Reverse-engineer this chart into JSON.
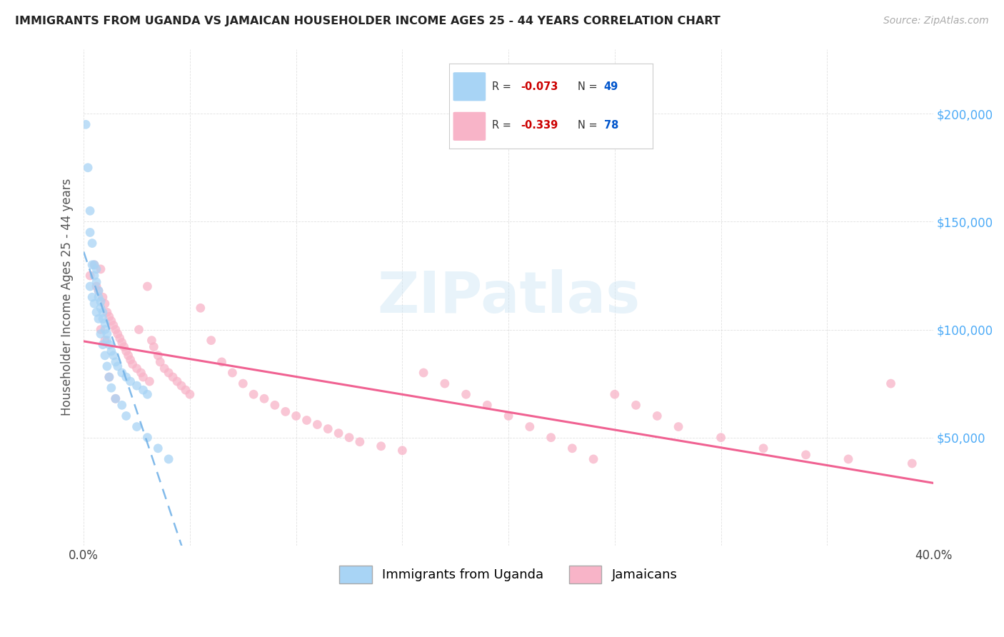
{
  "title": "IMMIGRANTS FROM UGANDA VS JAMAICAN HOUSEHOLDER INCOME AGES 25 - 44 YEARS CORRELATION CHART",
  "source": "Source: ZipAtlas.com",
  "ylabel": "Householder Income Ages 25 - 44 years",
  "xlim": [
    0.0,
    0.4
  ],
  "ylim": [
    0,
    230000
  ],
  "color_uganda": "#a8d4f5",
  "color_jamaican": "#f8b4c8",
  "color_trend_uganda": "#74b3e8",
  "color_trend_jamaican": "#f06292",
  "background_color": "#ffffff",
  "legend_r1": "R = -0.073",
  "legend_n1": "N = 49",
  "legend_r2": "R = -0.339",
  "legend_n2": "N = 78",
  "bottom_legend": [
    "Immigrants from Uganda",
    "Jamaicans"
  ],
  "uganda_x": [
    0.001,
    0.002,
    0.003,
    0.003,
    0.004,
    0.004,
    0.005,
    0.005,
    0.006,
    0.006,
    0.007,
    0.007,
    0.008,
    0.008,
    0.009,
    0.009,
    0.01,
    0.01,
    0.011,
    0.011,
    0.012,
    0.013,
    0.014,
    0.015,
    0.016,
    0.018,
    0.02,
    0.022,
    0.025,
    0.028,
    0.03,
    0.003,
    0.004,
    0.005,
    0.006,
    0.007,
    0.008,
    0.009,
    0.01,
    0.011,
    0.012,
    0.013,
    0.015,
    0.018,
    0.02,
    0.025,
    0.03,
    0.035,
    0.04
  ],
  "uganda_y": [
    195000,
    175000,
    155000,
    145000,
    140000,
    130000,
    130000,
    125000,
    128000,
    122000,
    118000,
    115000,
    113000,
    110000,
    108000,
    105000,
    103000,
    100000,
    98000,
    95000,
    93000,
    90000,
    88000,
    85000,
    83000,
    80000,
    78000,
    76000,
    74000,
    72000,
    70000,
    120000,
    115000,
    112000,
    108000,
    105000,
    98000,
    93000,
    88000,
    83000,
    78000,
    73000,
    68000,
    65000,
    60000,
    55000,
    50000,
    45000,
    40000
  ],
  "jamaican_x": [
    0.003,
    0.005,
    0.006,
    0.007,
    0.008,
    0.009,
    0.01,
    0.011,
    0.012,
    0.013,
    0.014,
    0.015,
    0.016,
    0.017,
    0.018,
    0.019,
    0.02,
    0.021,
    0.022,
    0.023,
    0.025,
    0.026,
    0.027,
    0.028,
    0.03,
    0.031,
    0.032,
    0.033,
    0.035,
    0.036,
    0.038,
    0.04,
    0.042,
    0.044,
    0.046,
    0.048,
    0.05,
    0.055,
    0.06,
    0.065,
    0.07,
    0.075,
    0.08,
    0.085,
    0.09,
    0.095,
    0.1,
    0.105,
    0.11,
    0.115,
    0.12,
    0.125,
    0.13,
    0.14,
    0.15,
    0.16,
    0.17,
    0.18,
    0.19,
    0.2,
    0.21,
    0.22,
    0.23,
    0.24,
    0.25,
    0.26,
    0.27,
    0.28,
    0.3,
    0.32,
    0.34,
    0.36,
    0.38,
    0.39,
    0.008,
    0.01,
    0.012,
    0.015
  ],
  "jamaican_y": [
    125000,
    130000,
    120000,
    118000,
    128000,
    115000,
    112000,
    108000,
    106000,
    104000,
    102000,
    100000,
    98000,
    96000,
    94000,
    92000,
    90000,
    88000,
    86000,
    84000,
    82000,
    100000,
    80000,
    78000,
    120000,
    76000,
    95000,
    92000,
    88000,
    85000,
    82000,
    80000,
    78000,
    76000,
    74000,
    72000,
    70000,
    110000,
    95000,
    85000,
    80000,
    75000,
    70000,
    68000,
    65000,
    62000,
    60000,
    58000,
    56000,
    54000,
    52000,
    50000,
    48000,
    46000,
    44000,
    80000,
    75000,
    70000,
    65000,
    60000,
    55000,
    50000,
    45000,
    40000,
    70000,
    65000,
    60000,
    55000,
    50000,
    45000,
    42000,
    40000,
    75000,
    38000,
    100000,
    95000,
    78000,
    68000
  ]
}
